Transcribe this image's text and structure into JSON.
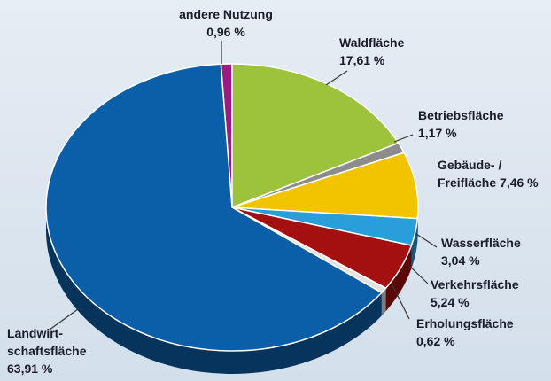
{
  "chart_data": {
    "type": "pie",
    "categories": [
      "andere Nutzung",
      "Waldfläche",
      "Betriebsfläche",
      "Gebäude- /\nFreifläche",
      "Wasserfläche",
      "Verkehrsfläche",
      "Erholungsfläche",
      "Landwirt-\nschaftsfläche"
    ],
    "values": [
      0.96,
      17.61,
      1.17,
      7.46,
      3.04,
      5.24,
      0.62,
      63.91
    ],
    "value_labels": [
      "0,96 %",
      "17,61 %",
      "1,17 %",
      "7,46 %",
      "3,04 %",
      "5,24 %",
      "0,62 %",
      "63,91 %"
    ],
    "colors": [
      "#9a1a86",
      "#9dc23b",
      "#8c8c8c",
      "#f2c400",
      "#2a9ed9",
      "#a3100f",
      "#e2e2e2",
      "#0b5ea8"
    ]
  }
}
